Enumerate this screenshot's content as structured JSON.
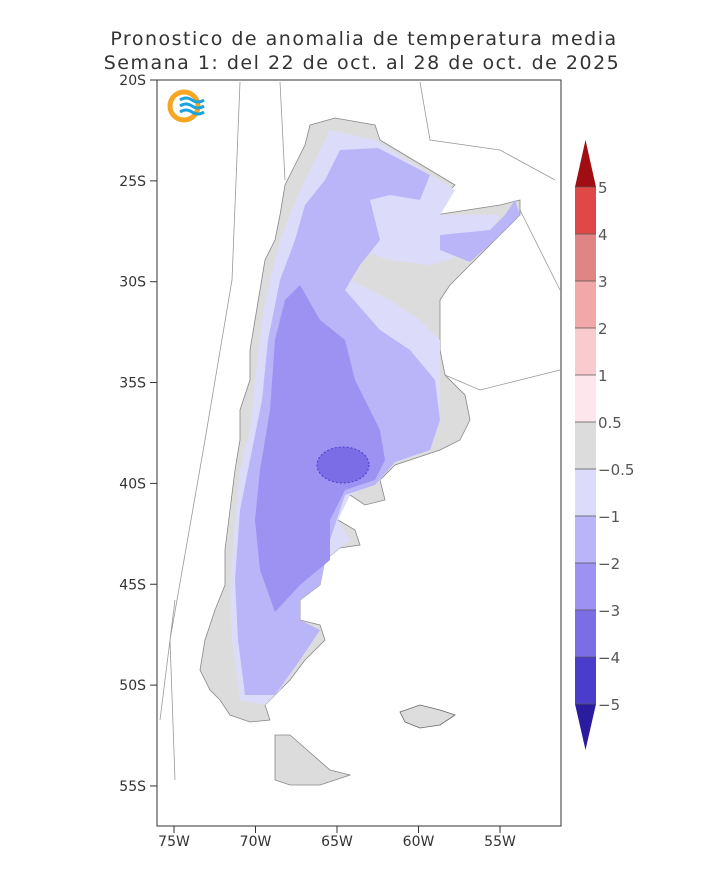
{
  "title": [
    "Pronostico de anomalia de temperatura media",
    "Semana 1: del 22 de oct. al 28 de oct. de 2025"
  ],
  "map": {
    "lat_ticks": [
      {
        "value": -20,
        "label": "20S"
      },
      {
        "value": -25,
        "label": "25S"
      },
      {
        "value": -30,
        "label": "30S"
      },
      {
        "value": -35,
        "label": "35S"
      },
      {
        "value": -40,
        "label": "40S"
      },
      {
        "value": -45,
        "label": "45S"
      },
      {
        "value": -50,
        "label": "50S"
      },
      {
        "value": -55,
        "label": "55S"
      }
    ],
    "lon_ticks": [
      {
        "value": -75,
        "label": "75W"
      },
      {
        "value": -70,
        "label": "70W"
      },
      {
        "value": -65,
        "label": "65W"
      },
      {
        "value": -60,
        "label": "60W"
      },
      {
        "value": -55,
        "label": "55W"
      }
    ]
  },
  "legend": {
    "levels": [
      5,
      4,
      3,
      2,
      1,
      0.5,
      {
        "value": -0.5,
        "label": "−0.5"
      },
      {
        "value": -1,
        "label": "−1"
      },
      {
        "value": -2,
        "label": "−2"
      },
      {
        "value": -3,
        "label": "−3"
      },
      {
        "value": -4,
        "label": "−4"
      },
      {
        "value": -5,
        "label": "−5"
      }
    ],
    "colors": [
      "#a00d12",
      "#e04848",
      "#e08585",
      "#f2a8a8",
      "#f9cbcf",
      "#fde6ec",
      "#dcdcdc",
      "#dcdcfa",
      "#bab5f8",
      "#9d91f1",
      "#7b6de6",
      "#4b3dcc",
      "#2a1c9e"
    ]
  }
}
